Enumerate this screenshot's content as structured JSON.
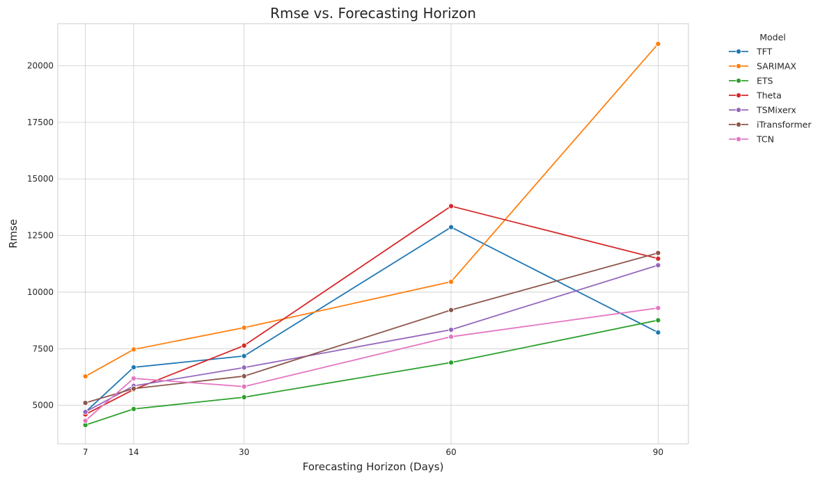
{
  "chart_data": {
    "type": "line",
    "title": "Rmse vs. Forecasting Horizon",
    "xlabel": "Forecasting Horizon (Days)",
    "ylabel": "Rmse",
    "x": [
      7,
      14,
      30,
      60,
      90
    ],
    "xticks": [
      7,
      14,
      30,
      60,
      90
    ],
    "yticks": [
      5000,
      7500,
      10000,
      12500,
      15000,
      17500,
      20000
    ],
    "xlim": [
      3,
      94.4
    ],
    "ylim": [
      3300,
      21860
    ],
    "grid": true,
    "legend": {
      "title": "Model",
      "placement": "outside-top-right"
    },
    "series": [
      {
        "name": "TFT",
        "color": "#1f77b4",
        "values": [
          4700,
          6680,
          7180,
          12870,
          8220
        ]
      },
      {
        "name": "SARIMAX",
        "color": "#ff7f0e",
        "values": [
          6280,
          7470,
          8430,
          10460,
          20970
        ]
      },
      {
        "name": "ETS",
        "color": "#2ca02c",
        "values": [
          4130,
          4840,
          5360,
          6890,
          8760
        ]
      },
      {
        "name": "Theta",
        "color": "#d62728",
        "values": [
          4600,
          5700,
          7640,
          13800,
          11480
        ]
      },
      {
        "name": "TSMixerx",
        "color": "#9467bd",
        "values": [
          4710,
          5860,
          6670,
          8340,
          11190
        ]
      },
      {
        "name": "iTransformer",
        "color": "#8c564b",
        "values": [
          5110,
          5740,
          6290,
          9210,
          11730
        ]
      },
      {
        "name": "TCN",
        "color": "#e377c2",
        "values": [
          4320,
          6190,
          5830,
          8030,
          9300
        ]
      }
    ]
  }
}
